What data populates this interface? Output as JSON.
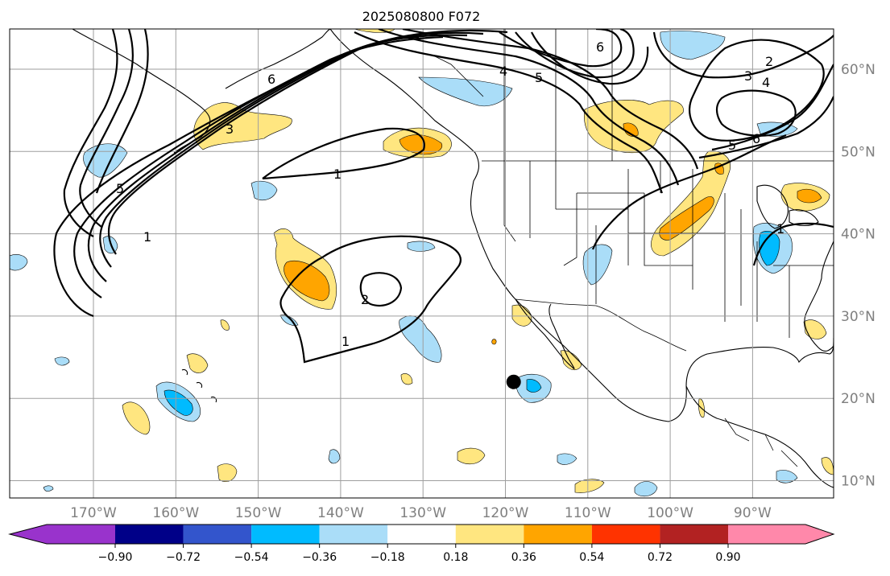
{
  "title": "2025080800 F072",
  "map": {
    "longitude_labels": [
      "170°W",
      "160°W",
      "150°W",
      "140°W",
      "130°W",
      "120°W",
      "110°W",
      "100°W",
      "90°W"
    ],
    "latitude_labels": [
      "60°N",
      "50°N",
      "40°N",
      "30°N",
      "20°N",
      "10°N"
    ],
    "contour_labels": [
      "1",
      "1",
      "1",
      "1",
      "2",
      "2",
      "3",
      "3",
      "4",
      "4",
      "5",
      "5",
      "5",
      "6",
      "6",
      "6"
    ],
    "marker": {
      "name": "point-marker",
      "lon": -119,
      "lat": 22
    }
  },
  "colorbar": {
    "ticks": [
      "−0.90",
      "−0.72",
      "−0.54",
      "−0.36",
      "−0.18",
      "0.18",
      "0.36",
      "0.54",
      "0.72",
      "0.90"
    ],
    "colors": [
      "#9933cc",
      "#000088",
      "#3355cc",
      "#00bbff",
      "#aaddf8",
      "#ffffff",
      "#ffe680",
      "#ffa500",
      "#ff3300",
      "#b22222",
      "#ff88aa"
    ]
  }
}
